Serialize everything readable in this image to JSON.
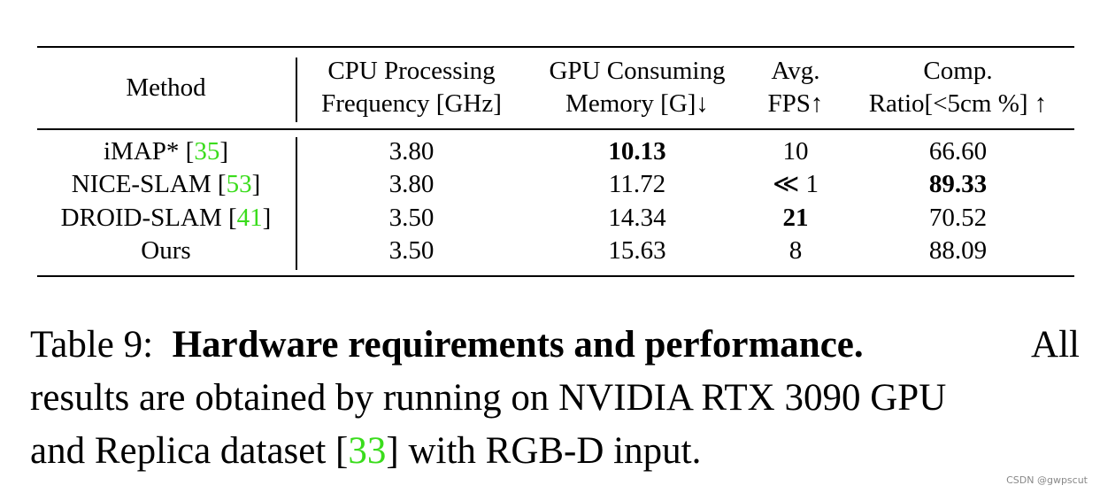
{
  "table": {
    "headers": {
      "method": "Method",
      "cpu_line1": "CPU Processing",
      "cpu_line2": "Frequency [GHz]",
      "gpu_line1": "GPU Consuming",
      "gpu_line2": "Memory [G]↓",
      "fps_line1": "Avg.",
      "fps_line2": "FPS↑",
      "comp_line1": "Comp.",
      "comp_line2": "Ratio[<5cm %] ↑"
    },
    "rows": [
      {
        "method": "iMAP* [",
        "cite": "35",
        "method_end": "]",
        "cpu": "3.80",
        "gpu": "10.13",
        "fps": "10",
        "comp": "66.60"
      },
      {
        "method": "NICE-SLAM [",
        "cite": "53",
        "method_end": "]",
        "cpu": "3.80",
        "gpu": "11.72",
        "fps": "≪ 1",
        "comp": "89.33"
      },
      {
        "method": "DROID-SLAM [",
        "cite": "41",
        "method_end": "]",
        "cpu": "3.50",
        "gpu": "14.34",
        "fps": "21",
        "comp": "70.52"
      },
      {
        "method": "Ours",
        "cite": "",
        "method_end": "",
        "cpu": "3.50",
        "gpu": "15.63",
        "fps": "8",
        "comp": "88.09"
      }
    ]
  },
  "caption": {
    "prefix": "Table 9:",
    "bold_title": "Hardware requirements and performance.",
    "line1_tail": "All",
    "line2": "results are obtained by running on NVIDIA RTX 3090 GPU",
    "line3_a": "and Replica dataset [",
    "line3_cite": "33",
    "line3_b": "] with RGB-D input."
  },
  "watermark": "CSDN @gwpscut",
  "colors": {
    "citation": "#3adc1c",
    "text": "#000000",
    "background": "#ffffff"
  }
}
